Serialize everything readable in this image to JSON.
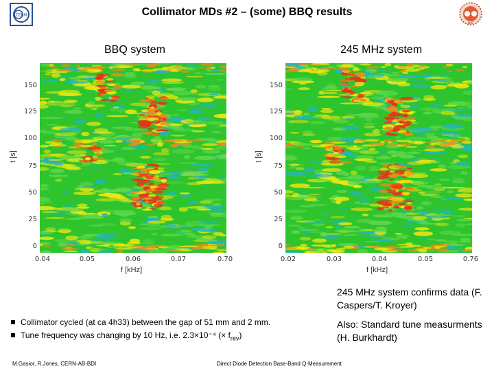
{
  "header": {
    "title": "Collimator MDs #2 – (some) BBQ results",
    "logo_left_text": "CERN",
    "logo_right_text": "LHC"
  },
  "panels": [
    {
      "label": "BBQ system",
      "y_axis_label": "t [s]",
      "x_axis_label": "f [kHz]",
      "y_ticks": [
        "150",
        "125",
        "100",
        "75",
        "50",
        "25",
        "0"
      ],
      "x_ticks": [
        "0.04",
        "0.05",
        "0.06",
        "0.07",
        "0.70"
      ]
    },
    {
      "label": "245 MHz system",
      "y_axis_label": "t [s]",
      "x_axis_label": "f [kHz]",
      "y_ticks": [
        "150",
        "125",
        "100",
        "75",
        "50",
        "25",
        "0"
      ],
      "x_ticks": [
        "0.02",
        "0.03",
        "0.04",
        "0.05",
        "0.76"
      ]
    }
  ],
  "notes": {
    "confirm": "245 MHz system confirms data (F. Caspers/T. Kroyer)",
    "also": "Also: Standard tune measurments (H. Burkhardt)"
  },
  "bullets": [
    "Collimator cycled (at ca 4h33) between the gap of 51 mm and 2 mm.",
    "Tune frequency was changing by 10 Hz, i.e. 2.3×10⁻⁴ (× f"
  ],
  "bullet_sub": "rev",
  "bullet_tail": ")",
  "footer": {
    "author": "M.Gasior, R.Jones, CERN-AB-BDI",
    "talk": "Direct Diode Detection Base-Band Q-Measurement"
  },
  "colors": {
    "heat_low": "#2ec42e",
    "heat_mid": "#f4e80f",
    "heat_high": "#e8321a",
    "heat_cool": "#22b4c8"
  }
}
